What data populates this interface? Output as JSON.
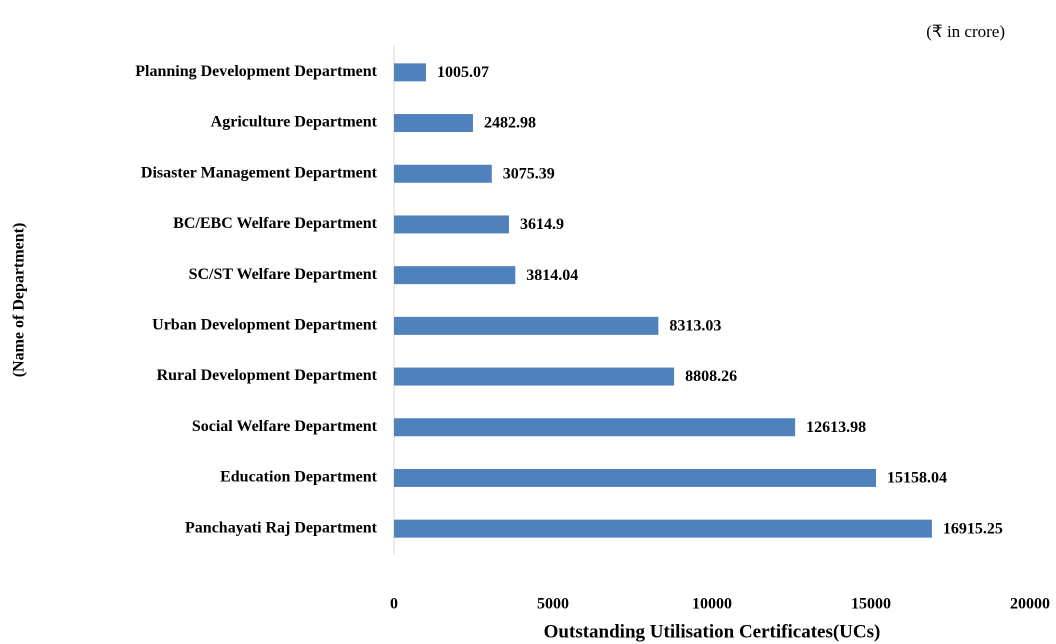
{
  "chart_data": {
    "type": "bar",
    "orientation": "horizontal",
    "note": "(₹ in crore)",
    "x_label": "Outstanding Utilisation Certificates(UCs)",
    "y_label": "(Name of Department)",
    "categories": [
      "Planning Development Department",
      "Agriculture Department",
      "Disaster Management Department",
      "BC/EBC Welfare Department",
      "SC/ST Welfare Department",
      "Urban Development Department",
      "Rural Development Department",
      "Social Welfare Department",
      "Education Department",
      "Panchayati Raj Department"
    ],
    "values": [
      1005.07,
      2482.98,
      3075.39,
      3614.9,
      3814.04,
      8313.03,
      8808.26,
      12613.98,
      15158.04,
      16915.25
    ],
    "color": "#4f81bd",
    "xlim": [
      0,
      20000
    ],
    "xticks": [
      0,
      5000,
      10000,
      15000,
      20000
    ],
    "grid": false
  }
}
